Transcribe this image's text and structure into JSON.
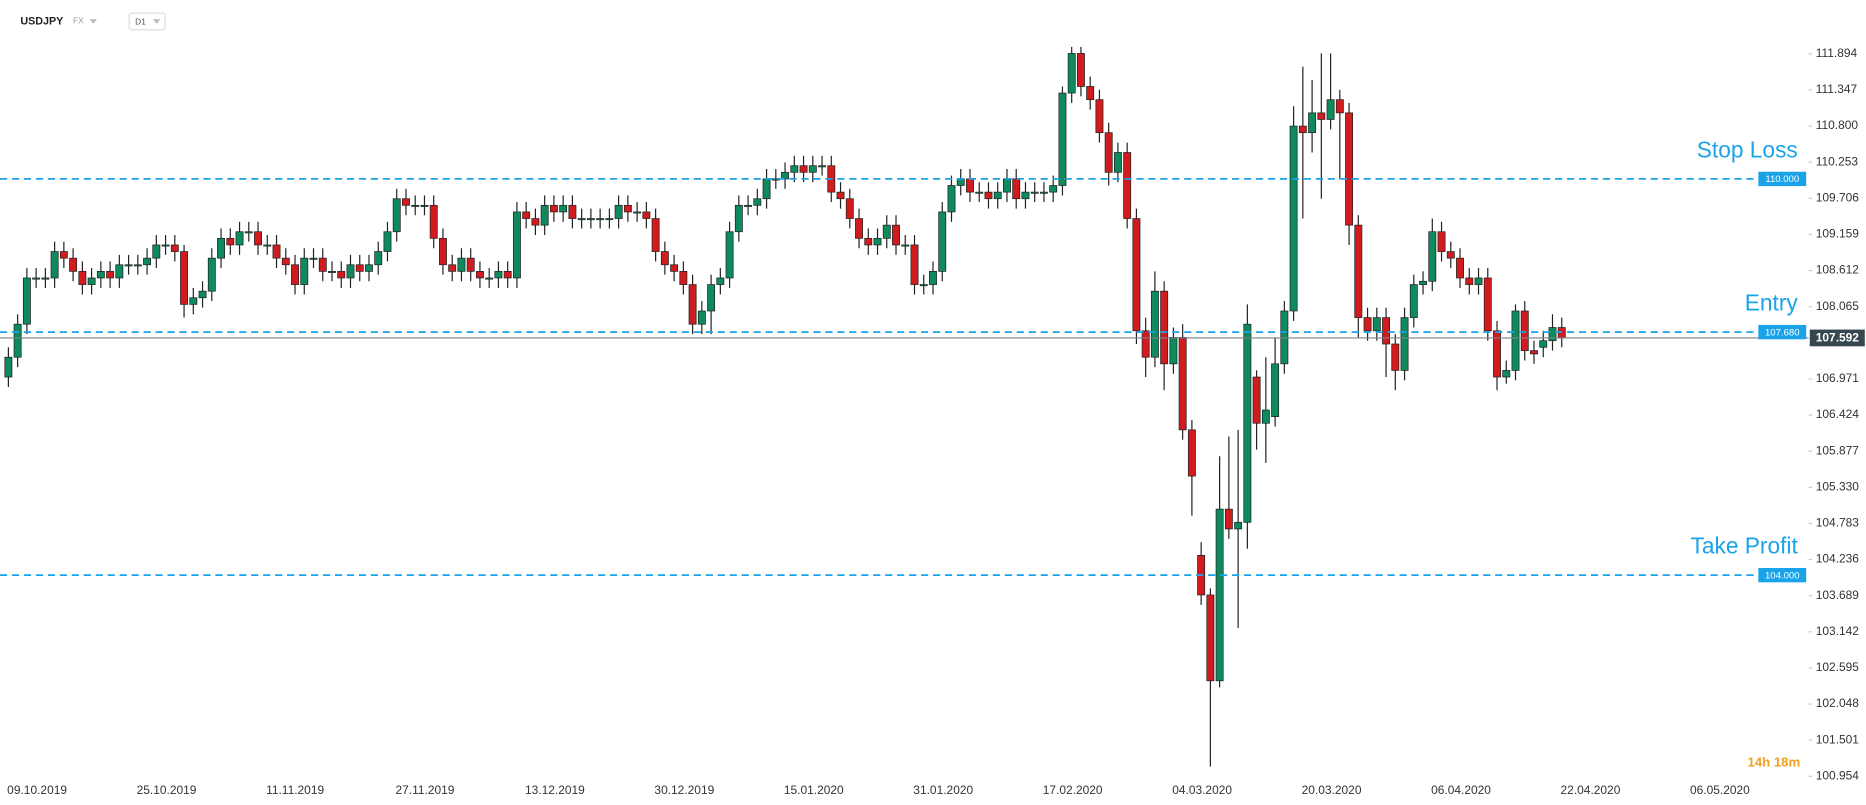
{
  "chart_data": {
    "type": "candlestick",
    "title": "USDJPY",
    "market": "FX",
    "timeframe": "D1",
    "countdown": "14h 18m",
    "up_color": "#0e8a5c",
    "down_color": "#d01c1f",
    "ylim": [
      100.9,
      112.7
    ],
    "yticks": [
      111.894,
      111.347,
      {
        "value": 110.8,
        "label": "110.800"
      },
      110.253,
      109.706,
      109.159,
      108.612,
      108.065,
      106.971,
      106.424,
      105.877,
      {
        "value": 105.33,
        "label": "105.330"
      },
      104.783,
      104.236,
      103.689,
      103.142,
      102.595,
      102.048,
      101.501,
      100.954
    ],
    "levels": [
      {
        "label": "Stop Loss",
        "value": 110,
        "value_label": "110.000",
        "color": "#1aa3e8"
      },
      {
        "label": "Entry",
        "value": 107.68,
        "value_label": "107.680",
        "color": "#1aa3e8"
      },
      {
        "label": "Take Profit",
        "value": 104,
        "value_label": "104.000",
        "color": "#1aa3e8"
      }
    ],
    "categories": [
      "09.10.2019",
      null,
      null,
      null,
      null,
      null,
      null,
      null,
      null,
      null,
      null,
      null,
      null,
      null,
      "25.10.2019",
      null,
      null,
      null,
      null,
      null,
      null,
      null,
      null,
      null,
      null,
      null,
      null,
      null,
      "11.11.2019",
      null,
      null,
      null,
      null,
      null,
      null,
      null,
      null,
      null,
      null,
      null,
      null,
      null,
      "27.11.2019",
      null,
      null,
      null,
      null,
      null,
      null,
      null,
      null,
      null,
      null,
      null,
      null,
      null,
      "13.12.2019",
      null,
      null,
      null,
      null,
      null,
      null,
      null,
      null,
      null,
      null,
      null,
      null,
      null,
      "30.12.2019",
      null,
      null,
      null,
      null,
      null,
      null,
      null,
      null,
      null,
      null,
      null,
      null,
      null,
      "15.01.2020",
      null,
      null,
      null,
      null,
      null,
      null,
      null,
      null,
      null,
      null,
      null,
      null,
      null,
      "31.01.2020",
      null,
      null,
      null,
      null,
      null,
      null,
      null,
      null,
      null,
      null,
      null,
      null,
      null,
      "17.02.2020",
      null,
      null,
      null,
      null,
      null,
      null,
      null,
      null,
      null,
      null,
      null,
      null,
      null,
      "04.03.2020",
      null,
      null,
      null,
      null,
      null,
      null,
      null,
      null,
      null,
      null,
      null,
      null,
      null,
      "20.03.2020",
      null,
      null,
      null,
      null,
      null,
      null,
      null,
      null,
      null,
      null,
      null,
      null,
      null,
      "06.04.2020",
      null,
      null,
      null,
      null,
      null,
      null,
      null,
      null,
      null,
      null,
      null,
      null,
      null,
      "22.04.2020",
      null,
      null,
      null,
      null,
      null,
      null,
      null,
      null,
      null,
      null,
      null,
      null,
      null,
      "06.05.2020"
    ],
    "open": [
      107.0,
      107.3,
      107.8,
      108.5,
      108.5,
      108.5,
      108.9,
      108.8,
      108.6,
      108.4,
      108.5,
      108.6,
      108.5,
      108.7,
      108.7,
      108.7,
      108.8,
      109.0,
      109.0,
      108.9,
      108.1,
      108.2,
      108.3,
      108.8,
      109.1,
      109.0,
      109.2,
      109.2,
      109.0,
      109.0,
      108.8,
      108.7,
      108.4,
      108.8,
      108.8,
      108.6,
      108.6,
      108.5,
      108.7,
      108.6,
      108.7,
      108.9,
      109.2,
      109.7,
      109.6,
      109.6,
      109.6,
      109.1,
      108.7,
      108.6,
      108.8,
      108.6,
      108.5,
      108.5,
      108.6,
      108.5,
      109.5,
      109.4,
      109.3,
      109.6,
      109.5,
      109.6,
      109.4,
      109.4,
      109.4,
      109.4,
      109.4,
      109.6,
      109.5,
      109.5,
      109.4,
      108.9,
      108.7,
      108.6,
      108.4,
      107.8,
      108.0,
      108.4,
      108.5,
      109.2,
      109.6,
      109.6,
      109.7,
      110.0,
      110.0,
      110.1,
      110.2,
      110.1,
      110.2,
      110.2,
      109.8,
      109.7,
      109.4,
      109.1,
      109.0,
      109.1,
      109.3,
      109.0,
      109.0,
      108.4,
      108.4,
      108.6,
      109.5,
      109.9,
      110.0,
      109.8,
      109.8,
      109.7,
      109.8,
      110.0,
      109.7,
      109.8,
      109.8,
      109.8,
      109.9,
      111.3,
      111.9,
      111.4,
      111.2,
      110.7,
      110.1,
      110.4,
      109.4,
      107.7,
      107.3,
      108.3,
      107.2,
      107.6,
      106.2,
      104.3,
      103.7,
      102.4,
      105.0,
      104.7,
      104.8,
      107.0,
      106.3,
      106.4,
      107.2,
      108.0,
      110.8,
      110.7,
      111.0,
      110.9,
      111.2,
      111.0,
      109.3,
      107.9,
      107.7,
      107.9,
      107.5,
      107.1,
      107.9,
      108.4,
      108.45,
      109.2,
      108.9,
      108.8,
      108.5,
      108.4,
      108.5,
      107.7,
      107.0,
      107.1,
      108.0,
      107.4,
      107.45,
      107.55,
      107.75,
      null,
      null,
      null,
      null,
      null,
      null,
      null,
      null,
      null,
      null,
      null,
      null,
      null,
      null
    ],
    "high": [
      107.45,
      107.95,
      108.65,
      108.65,
      108.65,
      109.05,
      109.05,
      108.95,
      108.75,
      108.65,
      108.75,
      108.75,
      108.85,
      108.85,
      108.85,
      108.95,
      109.15,
      109.15,
      109.15,
      109.0,
      108.35,
      108.45,
      108.95,
      109.25,
      109.25,
      109.35,
      109.35,
      109.35,
      109.15,
      109.15,
      108.95,
      108.85,
      108.95,
      108.95,
      108.95,
      108.75,
      108.75,
      108.85,
      108.85,
      108.85,
      109.05,
      109.35,
      109.85,
      109.85,
      109.75,
      109.75,
      109.75,
      109.25,
      108.85,
      108.95,
      108.95,
      108.75,
      108.65,
      108.75,
      108.75,
      109.65,
      109.65,
      109.55,
      109.75,
      109.75,
      109.75,
      109.75,
      109.55,
      109.55,
      109.55,
      109.55,
      109.75,
      109.75,
      109.65,
      109.65,
      109.55,
      109.05,
      108.85,
      108.75,
      108.55,
      108.15,
      108.55,
      108.65,
      109.35,
      109.75,
      109.75,
      109.85,
      110.15,
      110.15,
      110.25,
      110.35,
      110.35,
      110.35,
      110.35,
      110.35,
      109.95,
      109.85,
      109.55,
      109.25,
      109.25,
      109.45,
      109.45,
      109.15,
      109.15,
      108.55,
      108.75,
      109.65,
      110.05,
      110.15,
      110.15,
      109.95,
      109.95,
      109.95,
      110.15,
      110.15,
      109.95,
      109.95,
      109.95,
      110.05,
      111.4,
      112.0,
      112.0,
      111.55,
      111.35,
      110.85,
      110.55,
      110.55,
      109.55,
      107.9,
      108.6,
      108.45,
      107.75,
      107.8,
      106.35,
      104.5,
      103.8,
      105.8,
      106.1,
      106.2,
      108.1,
      107.1,
      107.3,
      107.6,
      108.15,
      111.1,
      111.7,
      111.5,
      111.9,
      111.9,
      111.35,
      111.15,
      109.45,
      108.05,
      108.05,
      108.05,
      107.65,
      108.05,
      108.55,
      108.6,
      109.4,
      109.35,
      109.05,
      108.95,
      108.65,
      108.65,
      108.65,
      107.85,
      107.25,
      108.1,
      108.15,
      107.55,
      107.7,
      107.95,
      107.9,
      null,
      null,
      null,
      null,
      null,
      null,
      null,
      null,
      null,
      null,
      null,
      null,
      null,
      null
    ],
    "low": [
      106.85,
      107.15,
      107.65,
      108.35,
      108.35,
      108.35,
      108.65,
      108.45,
      108.25,
      108.25,
      108.35,
      108.35,
      108.35,
      108.55,
      108.55,
      108.55,
      108.65,
      108.85,
      108.75,
      107.9,
      107.95,
      108.05,
      108.15,
      108.65,
      108.85,
      108.85,
      109.05,
      108.85,
      108.85,
      108.65,
      108.55,
      108.25,
      108.25,
      108.65,
      108.45,
      108.45,
      108.35,
      108.35,
      108.45,
      108.45,
      108.55,
      108.75,
      109.05,
      109.45,
      109.45,
      109.45,
      108.95,
      108.55,
      108.45,
      108.45,
      108.45,
      108.35,
      108.35,
      108.35,
      108.35,
      108.35,
      109.25,
      109.15,
      109.15,
      109.35,
      109.35,
      109.25,
      109.25,
      109.25,
      109.25,
      109.25,
      109.25,
      109.35,
      109.35,
      109.25,
      108.75,
      108.55,
      108.45,
      108.25,
      107.65,
      107.65,
      107.65,
      108.25,
      108.35,
      109.05,
      109.45,
      109.45,
      109.55,
      109.85,
      109.85,
      109.95,
      109.95,
      109.95,
      110.05,
      109.65,
      109.55,
      109.25,
      108.95,
      108.85,
      108.85,
      108.95,
      108.85,
      108.85,
      108.25,
      108.25,
      108.25,
      108.45,
      109.35,
      109.75,
      109.65,
      109.65,
      109.55,
      109.55,
      109.65,
      109.55,
      109.55,
      109.65,
      109.65,
      109.65,
      109.75,
      111.15,
      111.25,
      111.05,
      110.55,
      109.9,
      109.95,
      109.25,
      107.5,
      107.0,
      107.15,
      106.8,
      107.05,
      106.05,
      104.9,
      103.55,
      101.1,
      102.3,
      104.55,
      103.2,
      104.4,
      105.9,
      105.7,
      106.25,
      107.05,
      107.85,
      109.4,
      110.4,
      109.7,
      110.75,
      110.0,
      109.0,
      107.6,
      107.55,
      107.55,
      107.0,
      106.8,
      106.95,
      107.75,
      108.25,
      108.3,
      108.75,
      108.65,
      108.35,
      108.25,
      108.25,
      107.55,
      106.8,
      106.9,
      106.95,
      107.25,
      107.2,
      107.3,
      107.4,
      107.45,
      null,
      null,
      null,
      null,
      null,
      null,
      null,
      null,
      null,
      null,
      null,
      null,
      null,
      null
    ],
    "close": [
      107.3,
      107.8,
      108.5,
      108.5,
      108.5,
      108.9,
      108.8,
      108.6,
      108.4,
      108.5,
      108.6,
      108.5,
      108.7,
      108.7,
      108.7,
      108.8,
      109.0,
      109.0,
      108.9,
      108.1,
      108.2,
      108.3,
      108.8,
      109.1,
      109.0,
      109.2,
      109.2,
      109.0,
      109.0,
      108.8,
      108.7,
      108.4,
      108.8,
      108.8,
      108.6,
      108.6,
      108.5,
      108.7,
      108.6,
      108.7,
      108.9,
      109.2,
      109.7,
      109.6,
      109.6,
      109.6,
      109.1,
      108.7,
      108.6,
      108.8,
      108.6,
      108.5,
      108.5,
      108.6,
      108.5,
      109.5,
      109.4,
      109.3,
      109.6,
      109.5,
      109.6,
      109.4,
      109.4,
      109.4,
      109.4,
      109.4,
      109.6,
      109.5,
      109.5,
      109.4,
      108.9,
      108.7,
      108.6,
      108.4,
      107.8,
      108.0,
      108.4,
      108.5,
      109.2,
      109.6,
      109.6,
      109.7,
      110.0,
      110.0,
      110.1,
      110.2,
      110.1,
      110.2,
      110.2,
      109.8,
      109.7,
      109.4,
      109.1,
      109.0,
      109.1,
      109.3,
      109.0,
      109.0,
      108.4,
      108.4,
      108.6,
      109.5,
      109.9,
      110.0,
      109.8,
      109.8,
      109.7,
      109.8,
      110.0,
      109.7,
      109.8,
      109.8,
      109.8,
      109.9,
      111.3,
      111.9,
      111.4,
      111.2,
      110.7,
      110.1,
      110.4,
      109.4,
      107.7,
      107.3,
      108.3,
      107.2,
      107.6,
      106.2,
      105.5,
      103.7,
      102.4,
      105.0,
      104.7,
      104.8,
      107.8,
      106.3,
      106.5,
      107.2,
      108.0,
      110.8,
      110.7,
      111.0,
      110.9,
      111.2,
      111.0,
      109.3,
      107.9,
      107.7,
      107.9,
      107.5,
      107.1,
      107.9,
      108.4,
      108.45,
      109.2,
      108.9,
      108.8,
      108.5,
      108.4,
      108.5,
      107.7,
      107.0,
      107.1,
      108.0,
      107.4,
      107.35,
      107.55,
      107.75,
      107.592,
      null,
      null,
      null,
      null,
      null,
      null,
      null,
      null,
      null,
      null,
      null,
      null,
      null,
      null
    ]
  }
}
